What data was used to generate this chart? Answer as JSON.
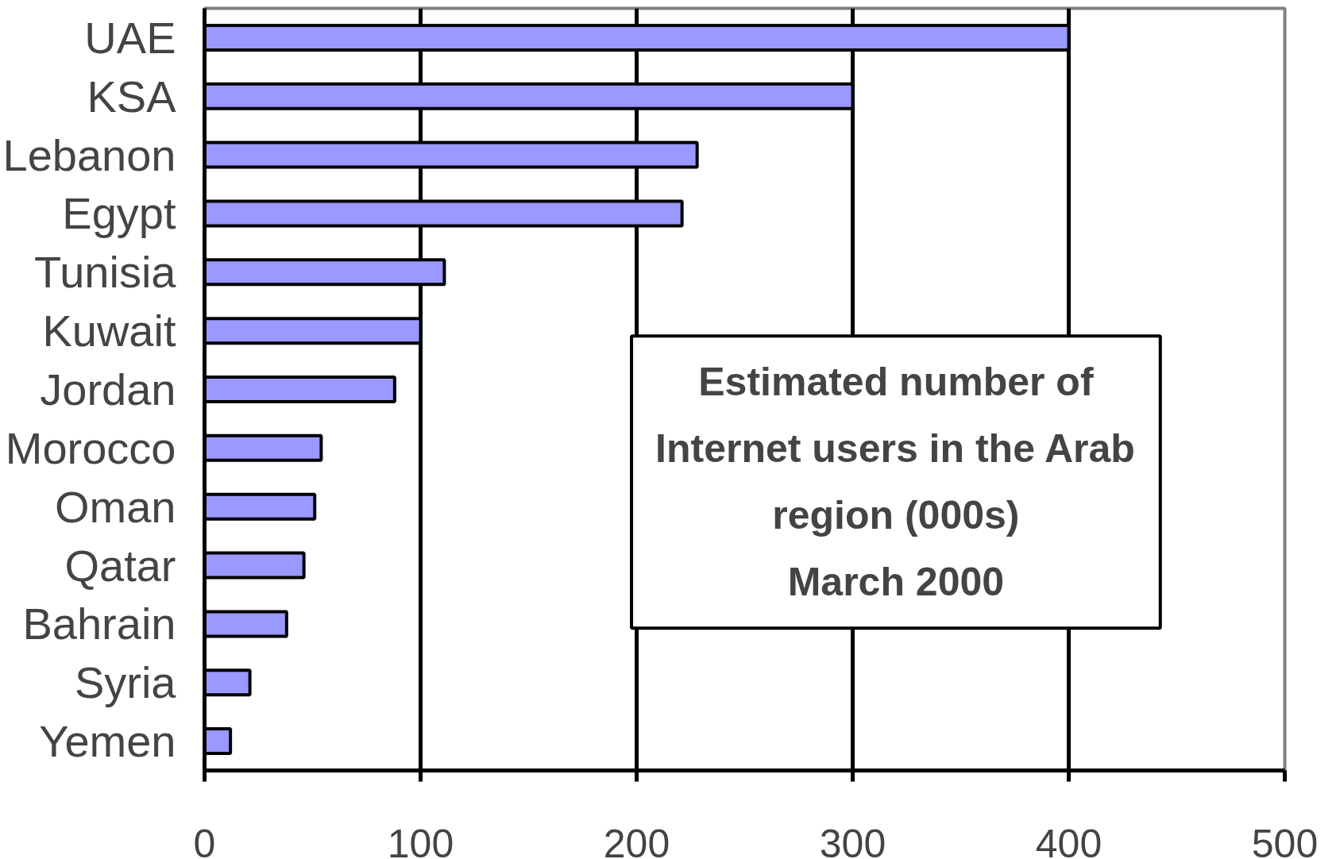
{
  "chart_data": {
    "type": "bar",
    "orientation": "horizontal",
    "title": "Estimated number of\nInternet users in the Arab\nregion (000s)\nMarch 2000",
    "categories": [
      "UAE",
      "KSA",
      "Lebanon",
      "Egypt",
      "Tunisia",
      "Kuwait",
      "Jordan",
      "Morocco",
      "Oman",
      "Qatar",
      "Bahrain",
      "Syria",
      "Yemen"
    ],
    "values": [
      400,
      300,
      228,
      221,
      111,
      100,
      88,
      54,
      51,
      46,
      38,
      21,
      12
    ],
    "color": "#9999ff",
    "xlim": [
      0,
      500
    ],
    "xticks": [
      0,
      100,
      200,
      300,
      400,
      500
    ],
    "grid": "x"
  }
}
